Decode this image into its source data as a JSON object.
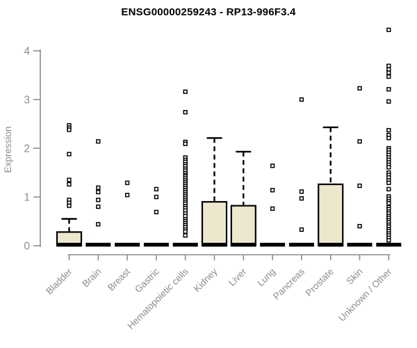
{
  "chart_data": {
    "type": "boxplot",
    "title": "ENSG00000259243 - RP13-996F3.4",
    "ylabel": "Expression",
    "xlabel": "",
    "ylim": [
      0,
      4
    ],
    "yticks": [
      0,
      1,
      2,
      3,
      4
    ],
    "grid": false,
    "legend": "none",
    "categories": [
      "Bladder",
      "Brain",
      "Breast",
      "Gastric",
      "Hematopoietic cells",
      "Kidney",
      "Liver",
      "Lung",
      "Pancreas",
      "Prostate",
      "Skin",
      "Unknown / Other"
    ],
    "series": [
      {
        "name": "Bladder",
        "q1": 0,
        "median": 0.02,
        "q3": 0.28,
        "whisker_low": 0,
        "whisker_high": 0.55,
        "outliers": [
          2.47,
          2.42,
          2.38,
          1.88,
          1.35,
          1.26,
          0.94,
          0.88,
          0.82
        ]
      },
      {
        "name": "Brain",
        "q1": 0,
        "median": 0.02,
        "q3": 0.02,
        "whisker_low": 0,
        "whisker_high": 0.02,
        "outliers": [
          2.14,
          1.19,
          1.1,
          0.94,
          0.8,
          0.44
        ]
      },
      {
        "name": "Breast",
        "q1": 0,
        "median": 0.02,
        "q3": 0.02,
        "whisker_low": 0,
        "whisker_high": 0.02,
        "outliers": [
          1.29,
          1.04
        ]
      },
      {
        "name": "Gastric",
        "q1": 0,
        "median": 0.02,
        "q3": 0.02,
        "whisker_low": 0,
        "whisker_high": 0.02,
        "outliers": [
          1.16,
          1.0,
          0.69
        ]
      },
      {
        "name": "Hematopoietic cells",
        "q1": 0,
        "median": 0.02,
        "q3": 0.02,
        "whisker_low": 0,
        "whisker_high": 0.02,
        "outliers": [
          3.16,
          2.74,
          2.13,
          2.09,
          1.81,
          1.76,
          1.72,
          1.67,
          1.63,
          1.58,
          1.54,
          1.49,
          1.45,
          1.42,
          1.38,
          1.34,
          1.3,
          1.26,
          1.22,
          1.18,
          1.14,
          1.1,
          1.06,
          1.02,
          0.98,
          0.94,
          0.9,
          0.86,
          0.81,
          0.77,
          0.72,
          0.66,
          0.61,
          0.54,
          0.5,
          0.46,
          0.42,
          0.38,
          0.33,
          0.29,
          0.21
        ]
      },
      {
        "name": "Kidney",
        "q1": 0,
        "median": 0.02,
        "q3": 0.9,
        "whisker_low": 0,
        "whisker_high": 2.21,
        "outliers": []
      },
      {
        "name": "Liver",
        "q1": 0,
        "median": 0.02,
        "q3": 0.82,
        "whisker_low": 0,
        "whisker_high": 1.93,
        "outliers": []
      },
      {
        "name": "Lung",
        "q1": 0,
        "median": 0.02,
        "q3": 0.02,
        "whisker_low": 0,
        "whisker_high": 0.02,
        "outliers": [
          1.64,
          1.14,
          0.76
        ]
      },
      {
        "name": "Pancreas",
        "q1": 0,
        "median": 0.02,
        "q3": 0.02,
        "whisker_low": 0,
        "whisker_high": 0.02,
        "outliers": [
          3.0,
          1.11,
          0.97,
          0.33
        ]
      },
      {
        "name": "Prostate",
        "q1": 0,
        "median": 0.02,
        "q3": 1.26,
        "whisker_low": 0,
        "whisker_high": 2.43,
        "outliers": []
      },
      {
        "name": "Skin",
        "q1": 0,
        "median": 0.02,
        "q3": 0.02,
        "whisker_low": 0,
        "whisker_high": 0.02,
        "outliers": [
          3.23,
          2.14,
          1.23,
          0.4
        ]
      },
      {
        "name": "Unknown / Other",
        "q1": 0,
        "median": 0.02,
        "q3": 0.02,
        "whisker_low": 0,
        "whisker_high": 0.02,
        "outliers": [
          4.43,
          3.69,
          3.62,
          3.55,
          3.47,
          3.21,
          2.96,
          2.37,
          2.27,
          2.21,
          2.0,
          1.96,
          1.91,
          1.86,
          1.81,
          1.76,
          1.71,
          1.66,
          1.61,
          1.5,
          1.45,
          1.4,
          1.34,
          1.29,
          1.16,
          1.01,
          0.96,
          0.91,
          0.87,
          0.79,
          0.75,
          0.7,
          0.66,
          0.61,
          0.57,
          0.52,
          0.48,
          0.43,
          0.39,
          0.34,
          0.3,
          0.25,
          0.21,
          0.16,
          0.11
        ]
      }
    ],
    "colors": {
      "box_fill": "#EDE8CD",
      "box_stroke": "#000000",
      "median": "#000000",
      "whisker": "#000000",
      "outlier_fill": "#FFFFFF",
      "outlier_stroke": "#000000",
      "axis": "#8C8C8C",
      "tick_text": "#8C8C8C",
      "title_text": "#000000",
      "background": "#FFFFFF"
    }
  }
}
